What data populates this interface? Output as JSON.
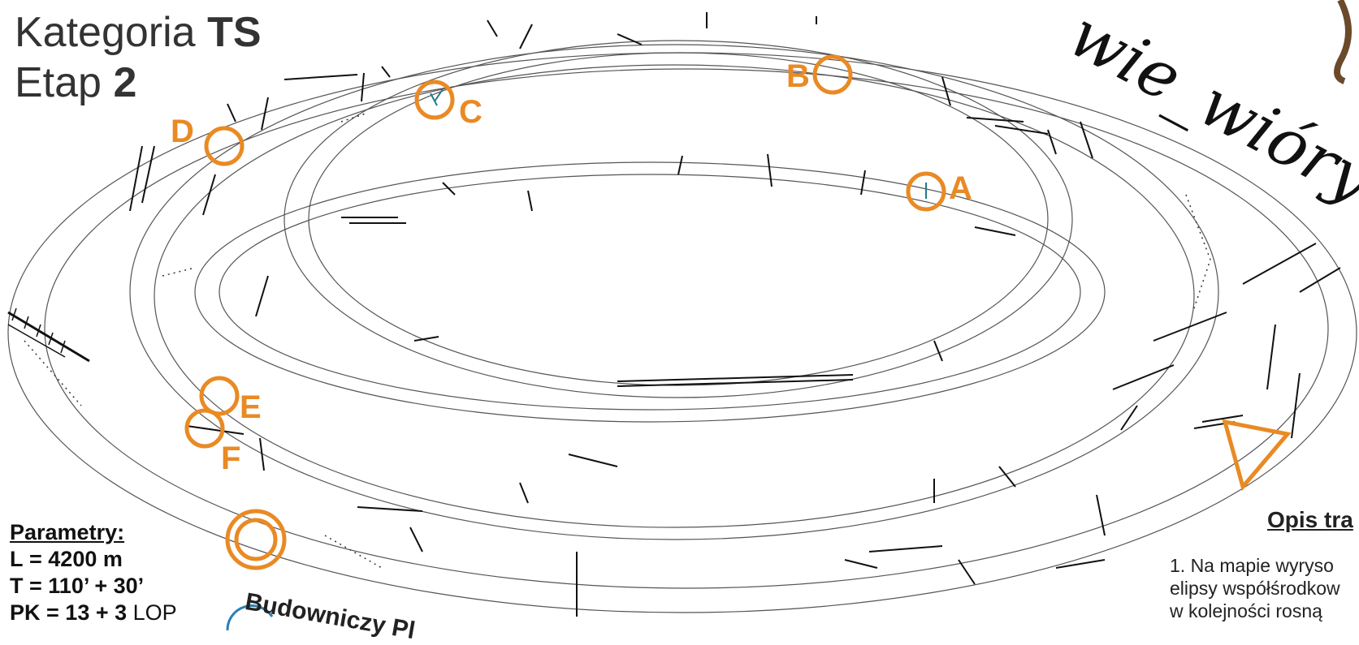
{
  "title": {
    "category_prefix": "Kategoria",
    "category_value": "TS",
    "stage_prefix": "Etap",
    "stage_value": "2"
  },
  "control_points": [
    {
      "label": "A"
    },
    {
      "label": "B"
    },
    {
      "label": "C"
    },
    {
      "label": "D"
    },
    {
      "label": "E"
    },
    {
      "label": "F"
    }
  ],
  "parameters": {
    "header": "Parametry:",
    "length_label": "L",
    "length_value": "= 4200 m",
    "time_label": "T",
    "time_value": "= 110’ + 30’",
    "pk_label": "PK",
    "pk_value": "= 13 + 3",
    "pk_suffix": "LOP"
  },
  "builder_text": "Budowniczy Pl",
  "course_description": {
    "title": "Opis tra",
    "lines": [
      "1. Na mapie wyryso",
      "elipsy współśrodkow",
      " w kolejności rosną"
    ]
  },
  "watermark": "wie_wióry",
  "colors": {
    "control_orange": "#e98a24",
    "ellipse_line": "#444444",
    "feature_teal": "#1f7a8c"
  }
}
